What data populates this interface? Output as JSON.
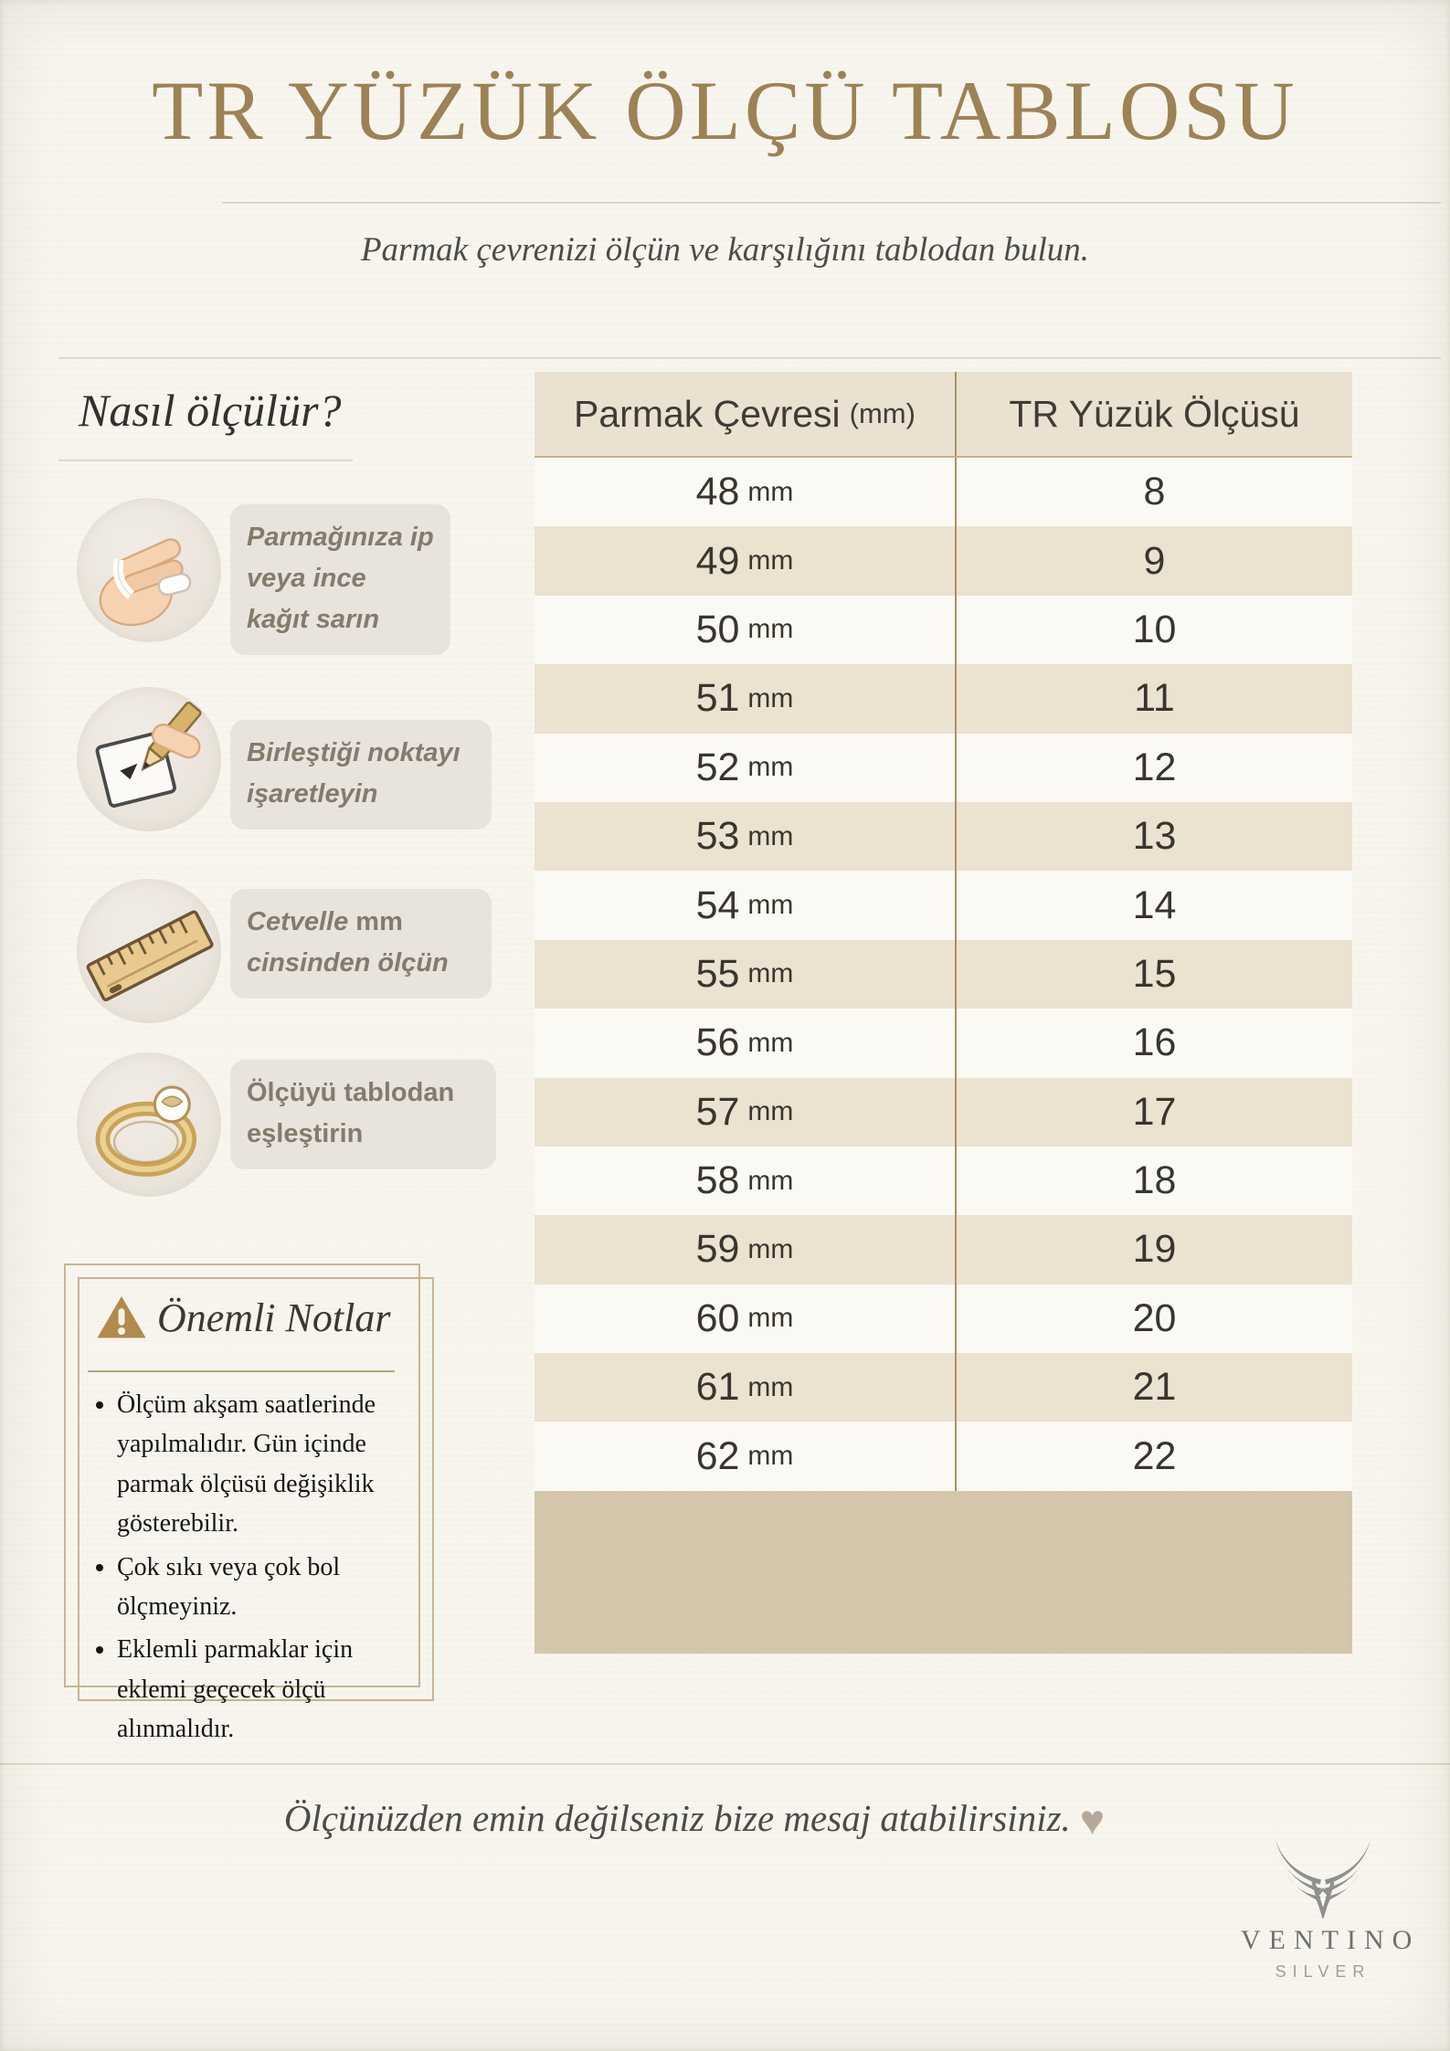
{
  "title": "TR YÜZÜK ÖLÇÜ TABLOSU",
  "subtitle": "Parmak çevrenizi ölçün ve karşılığını tablodan bulun.",
  "how_to": {
    "heading": "Nasıl ölçülür?",
    "steps": [
      {
        "icon": "hand-wrap-icon",
        "text": "Parmağınıza ip veya ince kağıt sarın"
      },
      {
        "icon": "pencil-mark-icon",
        "text": "Birleştiği noktayı işaretleyin"
      },
      {
        "icon": "ruler-icon",
        "text_before": "Cetvelle ",
        "text_unit": "mm",
        "text_after": " cinsinden ölçün"
      },
      {
        "icon": "ring-icon",
        "text": "Ölçüyü tablodan eşleştirin"
      }
    ]
  },
  "notes": {
    "icon": "warning-triangle-icon",
    "heading": "Önemli Notlar",
    "items": [
      "Ölçüm akşam saatlerinde yapılmalıdır. Gün içinde parmak ölçüsü değişiklik gösterebilir.",
      "Çok sıkı veya çok bol ölçmeyiniz.",
      "Eklemli parmaklar için eklemi geçecek  ölçü alınmalıdır."
    ]
  },
  "table_ui": {
    "header1_label": "Parmak Çevresi",
    "header1_unit": "(mm)",
    "header2_label": "TR Yüzük Ölçüsü",
    "unit_label": "mm"
  },
  "chart_data": {
    "type": "table",
    "title": "TR YÜZÜK ÖLÇÜ TABLOSU",
    "columns": [
      "Parmak Çevresi (mm)",
      "TR Yüzük Ölçüsü"
    ],
    "rows": [
      {
        "circumference_mm": 48,
        "tr_size": 8
      },
      {
        "circumference_mm": 49,
        "tr_size": 9
      },
      {
        "circumference_mm": 50,
        "tr_size": 10
      },
      {
        "circumference_mm": 51,
        "tr_size": 11
      },
      {
        "circumference_mm": 52,
        "tr_size": 12
      },
      {
        "circumference_mm": 53,
        "tr_size": 13
      },
      {
        "circumference_mm": 54,
        "tr_size": 14
      },
      {
        "circumference_mm": 55,
        "tr_size": 15
      },
      {
        "circumference_mm": 56,
        "tr_size": 16
      },
      {
        "circumference_mm": 57,
        "tr_size": 17
      },
      {
        "circumference_mm": 58,
        "tr_size": 18
      },
      {
        "circumference_mm": 59,
        "tr_size": 19
      },
      {
        "circumference_mm": 60,
        "tr_size": 20
      },
      {
        "circumference_mm": 61,
        "tr_size": 21
      },
      {
        "circumference_mm": 62,
        "tr_size": 22
      }
    ]
  },
  "footer": {
    "message": "Ölçünüzden emin değilseniz bize mesaj atabilirsiniz.",
    "heart": "♥"
  },
  "brand": {
    "icon": "wings-logo-icon",
    "name": "VENTINO",
    "subname": "SILVER"
  },
  "colors": {
    "title_gold": "#9c8254",
    "frame_tan": "#c8b590",
    "table_header_beige": "#ebe1d1",
    "table_row_beige": "#ece2d0",
    "table_row_white": "#fbf9f3",
    "table_bottom_tan": "#d4c6aa",
    "table_divider_brown": "#aa9164",
    "bubble_bg": "#e8e3dd",
    "bubble_text": "#867a6c",
    "warning_gold": "#b08b4e",
    "heart_beige": "#b5a898",
    "logo_gray": "#8f8f8f"
  }
}
